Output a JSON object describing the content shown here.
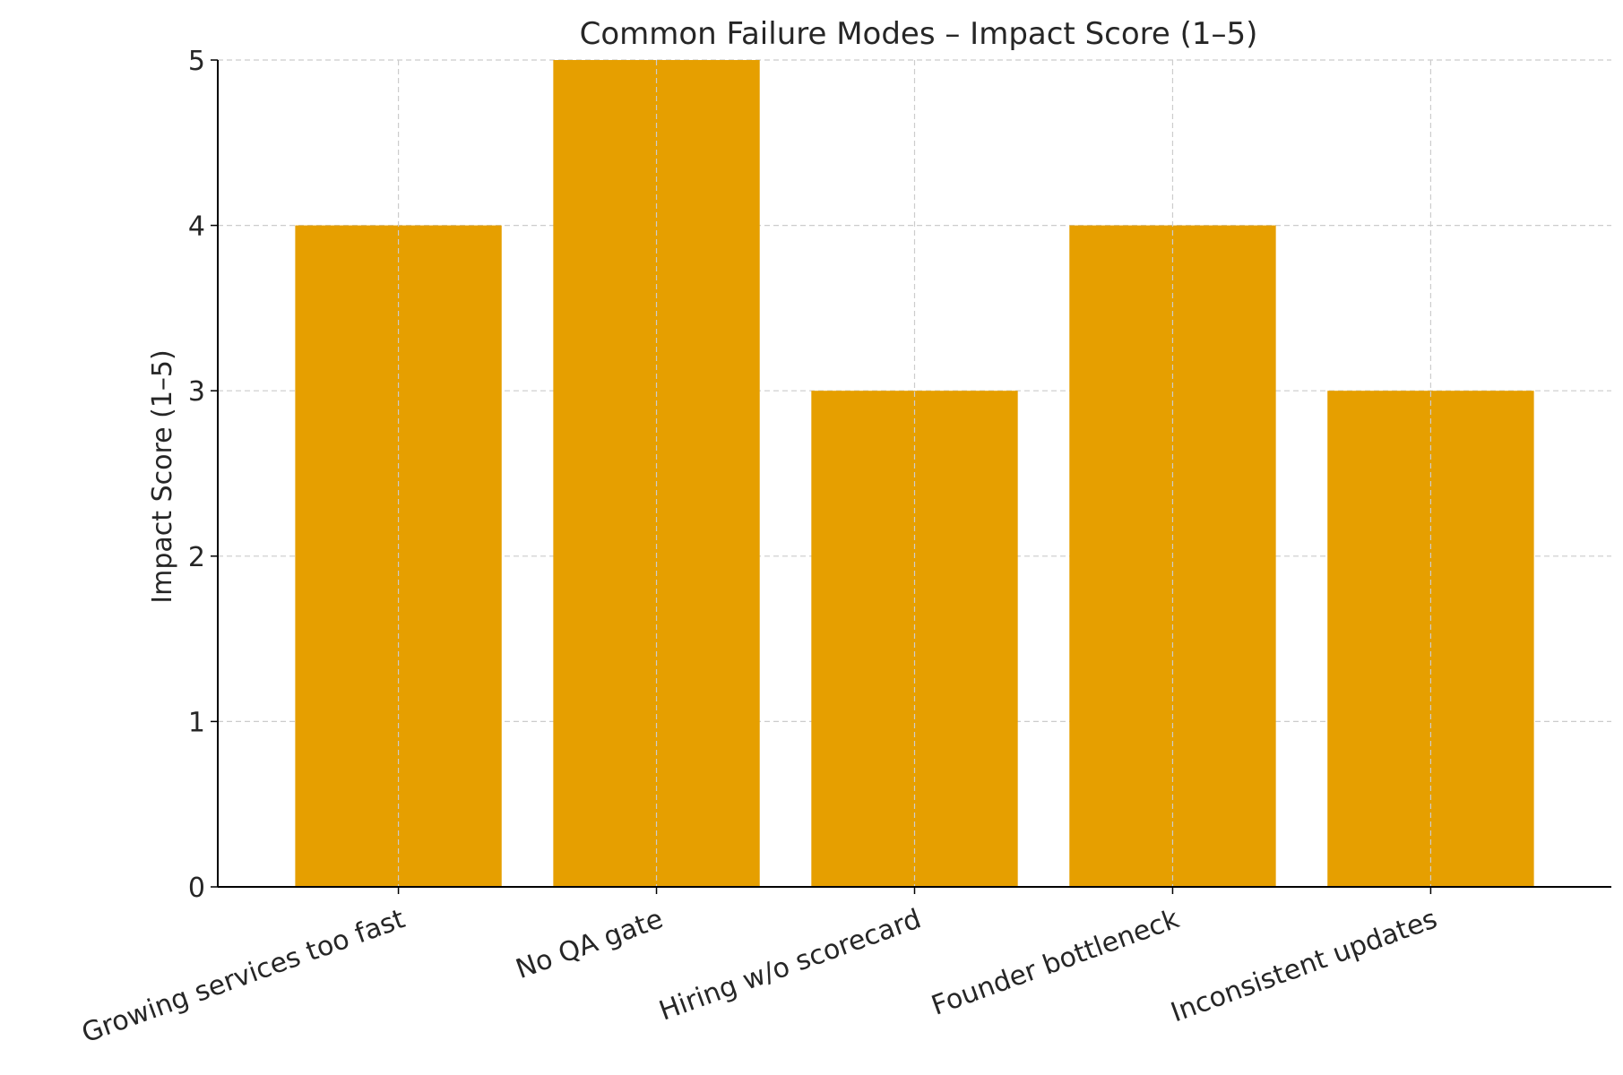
{
  "chart_data": {
    "type": "bar",
    "title": "Common Failure Modes – Impact Score (1–5)",
    "xlabel": "",
    "ylabel": "Impact Score (1–5)",
    "categories": [
      "Growing services too fast",
      "No QA gate",
      "Hiring w/o scorecard",
      "Founder bottleneck",
      "Inconsistent updates"
    ],
    "values": [
      4,
      5,
      3,
      4,
      3
    ],
    "ylim": [
      0,
      5
    ],
    "yticks": [
      "0",
      "1",
      "2",
      "3",
      "4",
      "5"
    ],
    "grid": true,
    "x_tick_rotation_deg": 20,
    "colors": {
      "bar": "#E69F00",
      "grid": "#cccccc",
      "axis": "#000000",
      "text": "#262626"
    }
  }
}
